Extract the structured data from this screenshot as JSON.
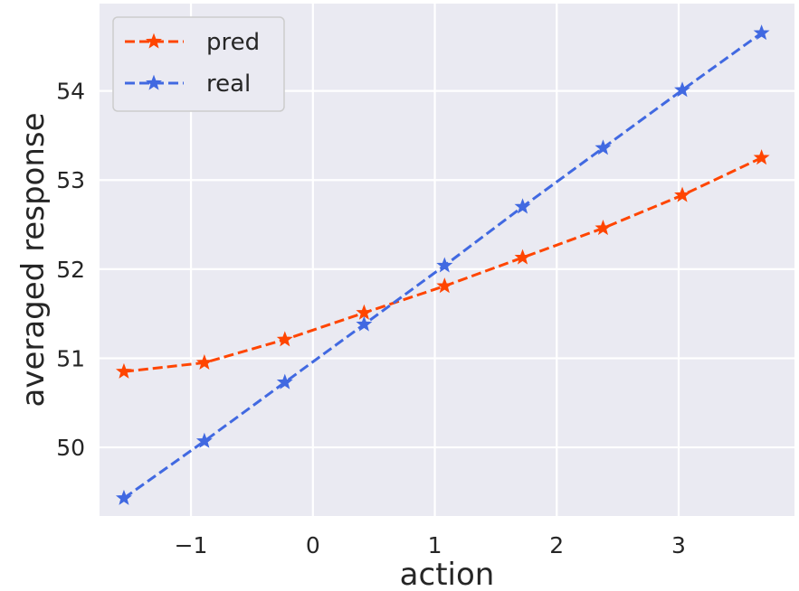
{
  "chart_data": {
    "type": "line",
    "title": "",
    "xlabel": "action",
    "ylabel": "averaged response",
    "xlim": [
      -1.75,
      3.95
    ],
    "ylim": [
      49.23,
      54.98
    ],
    "xticks": [
      {
        "value": -1,
        "label": "−1"
      },
      {
        "value": 0,
        "label": "0"
      },
      {
        "value": 1,
        "label": "1"
      },
      {
        "value": 2,
        "label": "2"
      },
      {
        "value": 3,
        "label": "3"
      }
    ],
    "yticks": [
      {
        "value": 50,
        "label": "50"
      },
      {
        "value": 51,
        "label": "51"
      },
      {
        "value": 52,
        "label": "52"
      },
      {
        "value": 53,
        "label": "53"
      },
      {
        "value": 54,
        "label": "54"
      }
    ],
    "grid": true,
    "legend_position": "top-left",
    "series": [
      {
        "name": "pred",
        "color": "#ff4500",
        "line_style": "dashed",
        "marker": "star",
        "x": [
          -1.55,
          -0.89,
          -0.23,
          0.42,
          1.08,
          1.72,
          2.38,
          3.03,
          3.68
        ],
        "y": [
          50.85,
          50.95,
          51.21,
          51.51,
          51.81,
          52.13,
          52.46,
          52.83,
          53.25
        ]
      },
      {
        "name": "real",
        "color": "#4169e1",
        "line_style": "dashed",
        "marker": "star",
        "x": [
          -1.55,
          -0.89,
          -0.23,
          0.42,
          1.08,
          1.72,
          2.38,
          3.03,
          3.68
        ],
        "y": [
          49.43,
          50.07,
          50.73,
          51.38,
          52.04,
          52.7,
          53.36,
          54.01,
          54.65
        ]
      }
    ]
  }
}
